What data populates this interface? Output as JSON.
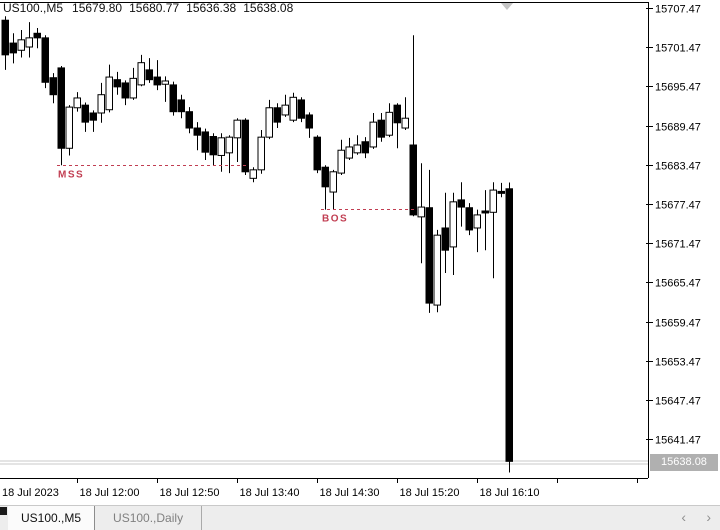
{
  "header": {
    "symbol": "US100.,M5",
    "open": "15679.80",
    "high": "15680.77",
    "low": "15636.38",
    "close": "15638.08"
  },
  "chart_data": {
    "type": "candlestick",
    "symbol": "US100.",
    "timeframe": "M5",
    "session_date": "18 Jul 2023",
    "price_axis": {
      "top_label_price": 15707.47,
      "step": 6.0,
      "labels": [
        "15707.47",
        "15701.47",
        "15695.47",
        "15689.47",
        "15683.47",
        "15677.47",
        "15671.47",
        "15665.47",
        "15659.47",
        "15653.47",
        "15647.47",
        "15641.47"
      ]
    },
    "time_axis": {
      "labels": [
        "18 Jul 2023",
        "18 Jul 12:00",
        "18 Jul 12:50",
        "18 Jul 13:40",
        "18 Jul 14:30",
        "18 Jul 15:20",
        "18 Jul 16:10"
      ]
    },
    "candles": [
      [
        "11:15",
        15705.6,
        15706.2,
        15698.0,
        15700.3
      ],
      [
        "11:20",
        15702.1,
        15703.6,
        15699.0,
        15700.6
      ],
      [
        "11:25",
        15701.0,
        15704.1,
        15699.9,
        15702.6
      ],
      [
        "11:30",
        15701.5,
        15705.3,
        15699.9,
        15702.9
      ],
      [
        "11:35",
        15703.6,
        15704.4,
        15701.3,
        15702.9
      ],
      [
        "11:40",
        15702.9,
        15703.3,
        15695.2,
        15696.1
      ],
      [
        "11:45",
        15696.8,
        15697.5,
        15692.9,
        15694.2
      ],
      [
        "11:50",
        15698.3,
        15698.6,
        15683.4,
        15686.0
      ],
      [
        "11:55",
        15686.0,
        15692.6,
        15684.9,
        15692.3
      ],
      [
        "12:00",
        15692.2,
        15694.6,
        15691.6,
        15693.7
      ],
      [
        "12:05",
        15692.6,
        15693.0,
        15688.5,
        15690.0
      ],
      [
        "12:10",
        15691.4,
        15691.8,
        15688.5,
        15690.3
      ],
      [
        "12:15",
        15691.4,
        15696.0,
        15689.9,
        15694.2
      ],
      [
        "12:20",
        15691.9,
        15698.8,
        15691.5,
        15696.9
      ],
      [
        "12:25",
        15696.5,
        15697.7,
        15694.2,
        15695.4
      ],
      [
        "12:30",
        15696.0,
        15696.4,
        15692.6,
        15693.7
      ],
      [
        "12:35",
        15693.7,
        15698.3,
        15693.4,
        15696.7
      ],
      [
        "12:40",
        15695.7,
        15700.3,
        15695.5,
        15699.1
      ],
      [
        "12:45",
        15698.0,
        15699.8,
        15696.0,
        15696.5
      ],
      [
        "12:50",
        15696.9,
        15699.5,
        15694.9,
        15695.7
      ],
      [
        "12:55",
        15695.8,
        15697.0,
        15693.1,
        15696.3
      ],
      [
        "13:00",
        15695.7,
        15696.2,
        15691.0,
        15691.6
      ],
      [
        "13:05",
        15693.4,
        15694.2,
        15690.6,
        15691.6
      ],
      [
        "13:10",
        15691.6,
        15692.3,
        15688.3,
        15689.1
      ],
      [
        "13:15",
        15689.1,
        15690.0,
        15685.7,
        15688.0
      ],
      [
        "13:20",
        15688.5,
        15689.0,
        15684.2,
        15685.4
      ],
      [
        "13:25",
        15687.8,
        15688.3,
        15683.4,
        15685.0
      ],
      [
        "13:30",
        15684.9,
        15688.3,
        15682.4,
        15687.6
      ],
      [
        "13:35",
        15685.3,
        15688.0,
        15682.2,
        15687.7
      ],
      [
        "13:40",
        15687.6,
        15690.6,
        15683.9,
        15690.3
      ],
      [
        "13:45",
        15690.3,
        15690.6,
        15681.9,
        15682.4
      ],
      [
        "13:50",
        15681.4,
        15683.1,
        15680.8,
        15682.7
      ],
      [
        "13:55",
        15682.7,
        15688.8,
        15682.1,
        15687.7
      ],
      [
        "14:00",
        15687.7,
        15693.4,
        15687.4,
        15692.2
      ],
      [
        "14:05",
        15692.2,
        15692.9,
        15689.1,
        15690.0
      ],
      [
        "14:10",
        15691.1,
        15694.2,
        15690.8,
        15692.6
      ],
      [
        "14:15",
        15690.3,
        15694.5,
        15690.0,
        15693.8
      ],
      [
        "14:20",
        15693.4,
        15693.8,
        15690.0,
        15690.6
      ],
      [
        "14:25",
        15691.1,
        15691.5,
        15687.6,
        15689.1
      ],
      [
        "14:30",
        15687.7,
        15688.0,
        15682.2,
        15682.7
      ],
      [
        "14:35",
        15683.1,
        15683.4,
        15676.6,
        15680.1
      ],
      [
        "14:40",
        15679.3,
        15682.7,
        15676.6,
        15682.4
      ],
      [
        "14:45",
        15682.2,
        15687.3,
        15681.9,
        15685.7
      ],
      [
        "14:50",
        15684.5,
        15687.6,
        15684.2,
        15686.2
      ],
      [
        "14:55",
        15685.3,
        15688.0,
        15685.0,
        15686.5
      ],
      [
        "15:00",
        15687.0,
        15687.7,
        15684.5,
        15685.3
      ],
      [
        "15:05",
        15686.2,
        15691.4,
        15685.9,
        15690.0
      ],
      [
        "15:10",
        15690.3,
        15691.4,
        15687.0,
        15687.7
      ],
      [
        "15:15",
        15688.0,
        15692.9,
        15687.7,
        15691.5
      ],
      [
        "15:20",
        15692.6,
        15692.9,
        15686.0,
        15689.9
      ],
      [
        "15:25",
        15689.1,
        15693.8,
        15688.8,
        15690.6
      ],
      [
        "15:30",
        15686.5,
        15703.3,
        15675.6,
        15675.8
      ],
      [
        "15:35",
        15675.5,
        15683.7,
        15668.4,
        15677.0
      ],
      [
        "15:40",
        15676.9,
        15682.7,
        15660.8,
        15662.3
      ],
      [
        "15:45",
        15662.0,
        15673.5,
        15660.9,
        15672.7
      ],
      [
        "15:50",
        15673.8,
        15679.2,
        15666.9,
        15670.4
      ],
      [
        "15:55",
        15670.9,
        15679.2,
        15666.6,
        15677.8
      ],
      [
        "16:00",
        15678.1,
        15680.8,
        15674.0,
        15677.0
      ],
      [
        "16:05",
        15676.9,
        15677.6,
        15672.7,
        15673.5
      ],
      [
        "16:10",
        15673.8,
        15676.6,
        15670.1,
        15675.8
      ],
      [
        "16:15",
        15676.4,
        15679.6,
        15670.4,
        15676.1
      ],
      [
        "16:20",
        15676.2,
        15680.8,
        15666.1,
        15679.6
      ],
      [
        "16:25",
        15679.4,
        15680.7,
        15678.5,
        15679.1
      ],
      [
        "16:30",
        15679.8,
        15680.77,
        15636.38,
        15638.08
      ]
    ],
    "annotations": [
      {
        "label": "MSS",
        "price": 15683.45,
        "from_index": 7,
        "to_index": 30
      },
      {
        "label": "BOS",
        "price": 15676.7,
        "from_index": 40,
        "to_index": 51
      }
    ],
    "current_price": {
      "value": 15638.08,
      "label": "15638.08"
    }
  },
  "tabs": {
    "items": [
      {
        "label": "US100.,M5",
        "active": true
      },
      {
        "label": "US100.,Daily",
        "active": false
      }
    ],
    "scroll_left_icon": "‹",
    "scroll_right_icon": "›"
  },
  "colors": {
    "bear_body": "#000000",
    "bull_fill": "#ffffff",
    "wick": "#000000",
    "border": "#000000",
    "axis_text": "#000000",
    "annotation": "#c13e52",
    "price_line": "#c8c8c8",
    "badge_bg": "#b0b0b0",
    "badge_text": "#ffffff",
    "shift_marker": "#c4c4c4"
  }
}
